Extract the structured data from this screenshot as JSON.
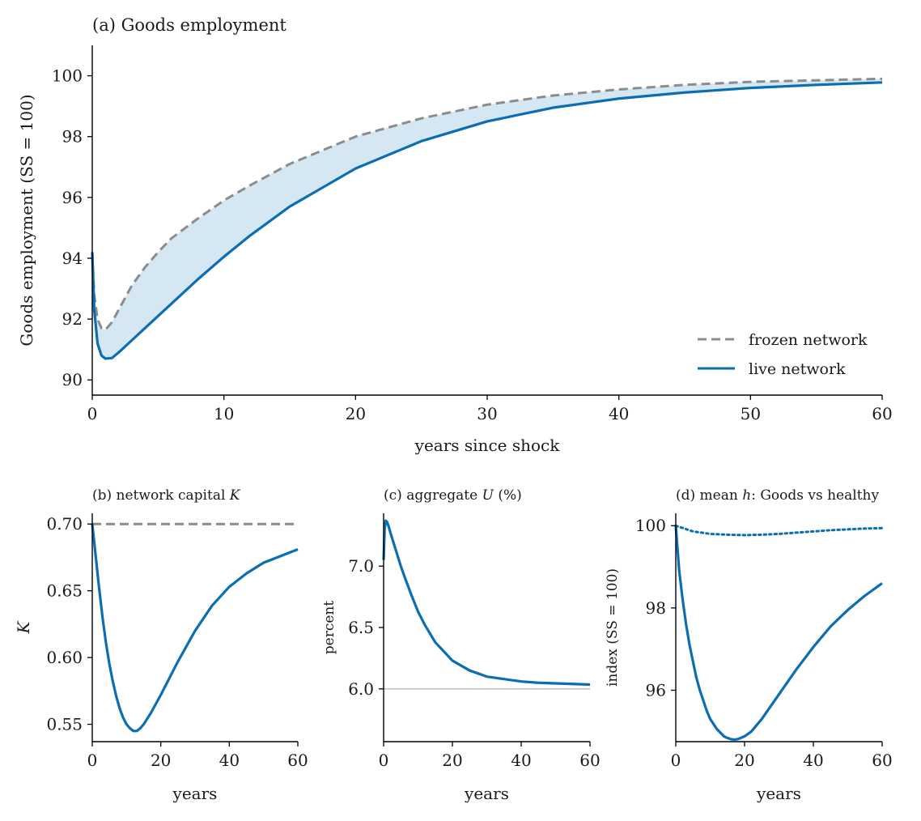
{
  "colors": {
    "live": "#0a6eb0",
    "frozen": "#8c8c8c",
    "fill": "#d5e7f2",
    "ref": "#c8c8c8"
  },
  "chart_data": [
    {
      "id": "a",
      "type": "line",
      "title": "(a) Goods employment",
      "xlabel": "years since shock",
      "ylabel": "Goods employment (SS = 100)",
      "xlim": [
        0,
        60
      ],
      "ylim": [
        89.5,
        101
      ],
      "xticks": [
        0,
        10,
        20,
        30,
        40,
        50,
        60
      ],
      "yticks": [
        90,
        92,
        94,
        96,
        98,
        100
      ],
      "legend_position": "lower-right",
      "fill_between": [
        "frozen network",
        "live network"
      ],
      "series": [
        {
          "name": "frozen network",
          "style": "dashed",
          "x": [
            0,
            0.15,
            0.4,
            0.7,
            1,
            1.5,
            2,
            3,
            4,
            5,
            6,
            8,
            10,
            12,
            15,
            20,
            25,
            30,
            35,
            40,
            45,
            50,
            55,
            60
          ],
          "y": [
            94.2,
            92.8,
            92.0,
            91.7,
            91.65,
            91.9,
            92.3,
            93.1,
            93.7,
            94.2,
            94.65,
            95.3,
            95.9,
            96.4,
            97.1,
            98.0,
            98.6,
            99.05,
            99.35,
            99.55,
            99.7,
            99.8,
            99.85,
            99.9
          ]
        },
        {
          "name": "live network",
          "style": "solid",
          "x": [
            0,
            0.15,
            0.4,
            0.7,
            1,
            1.5,
            2,
            3,
            4,
            5,
            6,
            8,
            10,
            12,
            15,
            20,
            25,
            30,
            35,
            40,
            45,
            50,
            55,
            60
          ],
          "y": [
            94.2,
            92.3,
            91.2,
            90.8,
            90.7,
            90.72,
            90.9,
            91.3,
            91.7,
            92.1,
            92.5,
            93.3,
            94.05,
            94.75,
            95.7,
            96.95,
            97.85,
            98.5,
            98.95,
            99.25,
            99.45,
            99.6,
            99.7,
            99.78
          ]
        }
      ]
    },
    {
      "id": "b",
      "type": "line",
      "title": "(b) network capital ",
      "title_var": "K",
      "xlabel": "years",
      "ylabel": "K",
      "xlim": [
        0,
        60
      ],
      "ylim": [
        0.537,
        0.708
      ],
      "xticks": [
        0,
        20,
        40,
        60
      ],
      "yticks": [
        0.55,
        0.6,
        0.65,
        0.7
      ],
      "ytick_labels": [
        "0.55",
        "0.60",
        "0.65",
        "0.70"
      ],
      "series": [
        {
          "style": "dashed",
          "x": [
            0,
            60
          ],
          "y": [
            0.7,
            0.7
          ]
        },
        {
          "style": "solid",
          "x": [
            0,
            1,
            2,
            3,
            4,
            5,
            6,
            7,
            8,
            9,
            10,
            11,
            12,
            13,
            14,
            15,
            17,
            20,
            25,
            30,
            35,
            40,
            45,
            50,
            55,
            60
          ],
          "y": [
            0.7,
            0.676,
            0.652,
            0.63,
            0.611,
            0.595,
            0.582,
            0.571,
            0.562,
            0.555,
            0.55,
            0.547,
            0.545,
            0.545,
            0.547,
            0.55,
            0.558,
            0.572,
            0.597,
            0.62,
            0.639,
            0.653,
            0.663,
            0.671,
            0.676,
            0.681
          ]
        }
      ]
    },
    {
      "id": "c",
      "type": "line",
      "title": "(c) aggregate ",
      "title_var": "U",
      "title_suffix": " (%)",
      "xlabel": "years",
      "ylabel": "percent",
      "xlim": [
        0,
        60
      ],
      "ylim": [
        5.57,
        7.43
      ],
      "xticks": [
        0,
        20,
        40,
        60
      ],
      "yticks": [
        6.0,
        6.5,
        7.0
      ],
      "ytick_labels": [
        "6.0",
        "6.5",
        "7.0"
      ],
      "series": [
        {
          "style": "reference",
          "x": [
            0,
            60
          ],
          "y": [
            6.0,
            6.0
          ]
        },
        {
          "style": "solid",
          "x": [
            0,
            0.3,
            0.6,
            1,
            1.5,
            2,
            3,
            4,
            5,
            6,
            8,
            10,
            12,
            15,
            20,
            25,
            30,
            35,
            40,
            45,
            50,
            55,
            60
          ],
          "y": [
            7.05,
            7.3,
            7.37,
            7.36,
            7.32,
            7.27,
            7.18,
            7.09,
            7.0,
            6.92,
            6.77,
            6.63,
            6.52,
            6.38,
            6.23,
            6.15,
            6.1,
            6.08,
            6.06,
            6.05,
            6.045,
            6.04,
            6.035
          ]
        }
      ]
    },
    {
      "id": "d",
      "type": "line",
      "title": "(d) mean ",
      "title_var": "h",
      "title_suffix": ": Goods vs healthy",
      "xlabel": "years",
      "ylabel": "index (SS = 100)",
      "xlim": [
        0,
        60
      ],
      "ylim": [
        94.75,
        100.3
      ],
      "xticks": [
        0,
        20,
        40,
        60
      ],
      "yticks": [
        96,
        98,
        100
      ],
      "series": [
        {
          "style": "dotted",
          "x": [
            0,
            5,
            10,
            15,
            20,
            25,
            30,
            35,
            40,
            45,
            50,
            55,
            60
          ],
          "y": [
            100.0,
            99.86,
            99.8,
            99.78,
            99.77,
            99.78,
            99.8,
            99.83,
            99.86,
            99.89,
            99.91,
            99.93,
            99.94
          ]
        },
        {
          "style": "solid",
          "x": [
            0,
            1,
            2,
            3,
            4,
            5,
            6,
            7,
            8,
            9,
            10,
            12,
            14,
            15,
            16,
            17,
            18,
            20,
            22,
            25,
            30,
            35,
            40,
            45,
            50,
            55,
            60
          ],
          "y": [
            100.0,
            98.9,
            98.2,
            97.6,
            97.1,
            96.7,
            96.3,
            96.0,
            95.75,
            95.5,
            95.3,
            95.05,
            94.88,
            94.84,
            94.81,
            94.8,
            94.81,
            94.88,
            95.0,
            95.3,
            95.9,
            96.5,
            97.05,
            97.55,
            97.95,
            98.3,
            98.6
          ]
        }
      ]
    }
  ]
}
